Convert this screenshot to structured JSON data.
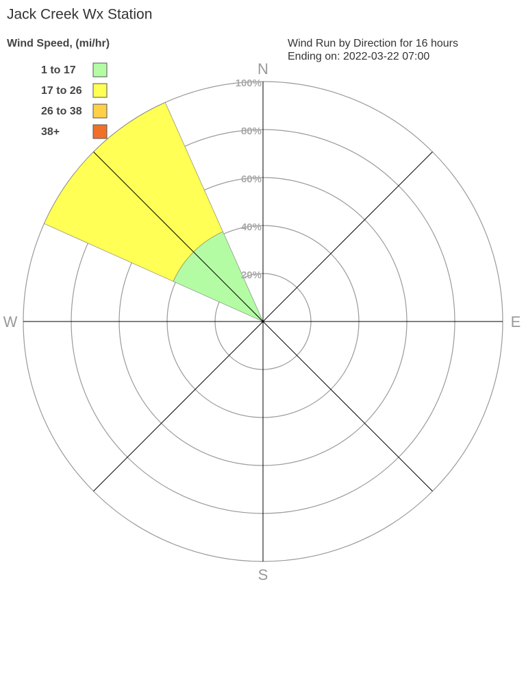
{
  "chart_data": {
    "type": "windrose",
    "title": "Jack Creek Wx Station",
    "subtitle": "Wind Run by Direction for 16 hours",
    "subtitle2": "Ending on: 2022-03-22 07:00",
    "legend_title": "Wind Speed, (mi/hr)",
    "categories": [
      "N",
      null,
      "E",
      null,
      "S",
      null,
      "W",
      null
    ],
    "series": [
      {
        "name": "1 to 17",
        "color": "#b4fca4",
        "values": [
          0,
          0,
          0,
          0,
          0,
          0,
          0,
          41
        ]
      },
      {
        "name": "17 to 26",
        "color": "#ffff55",
        "values": [
          0,
          0,
          0,
          0,
          0,
          0,
          0,
          59
        ]
      },
      {
        "name": "26 to 38",
        "color": "#fdd048",
        "values": [
          0,
          0,
          0,
          0,
          0,
          0,
          0,
          0
        ]
      },
      {
        "name": "38+",
        "color": "#f0702a",
        "values": [
          0,
          0,
          0,
          0,
          0,
          0,
          0,
          0
        ]
      }
    ],
    "rlim": [
      0,
      100
    ],
    "rticks": [
      {
        "value": 20,
        "label": "20%"
      },
      {
        "value": 40,
        "label": "40%"
      },
      {
        "value": 60,
        "label": "60%"
      },
      {
        "value": 80,
        "label": "80%"
      },
      {
        "value": 100,
        "label": "100%"
      }
    ],
    "grid": true
  }
}
